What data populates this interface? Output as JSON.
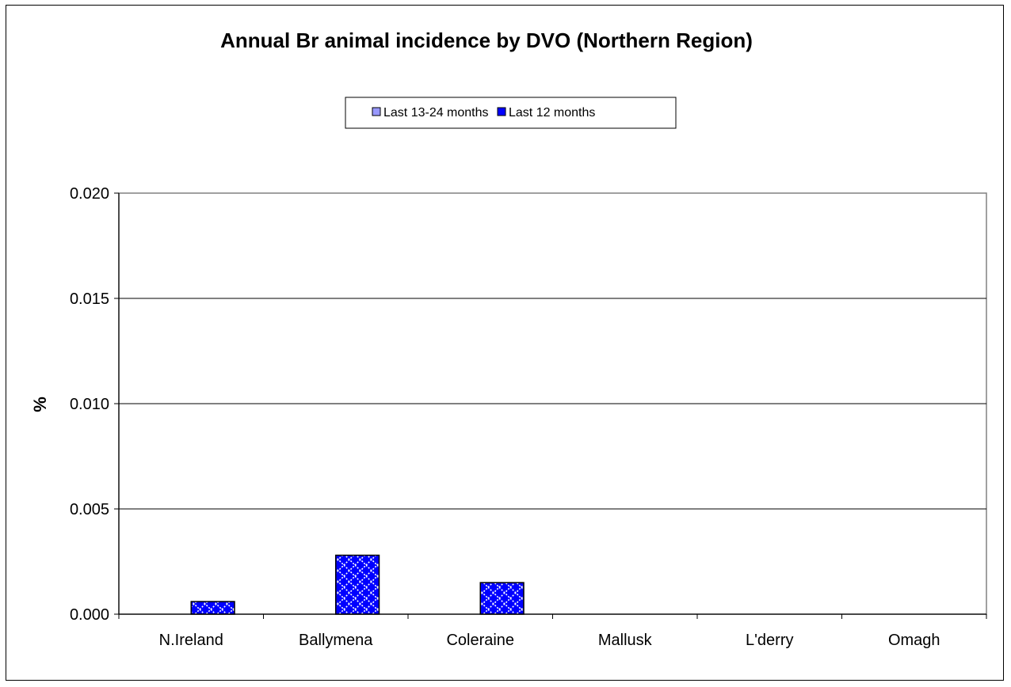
{
  "chart_data": {
    "type": "bar",
    "title": "Annual Br animal incidence by DVO (Northern Region)",
    "xlabel": "",
    "ylabel": "%",
    "categories": [
      "N.Ireland",
      "Ballymena",
      "Coleraine",
      "Mallusk",
      "L'derry",
      "Omagh"
    ],
    "series": [
      {
        "name": "Last 13-24 months",
        "values": [
          0,
          0,
          0,
          0,
          0,
          0
        ],
        "color": "#9999ff"
      },
      {
        "name": "Last 12 months",
        "values": [
          0.0006,
          0.0028,
          0.0015,
          0,
          0,
          0
        ],
        "color": "#0000ff"
      }
    ],
    "ylim": [
      0,
      0.02
    ],
    "yticks": [
      "0.000",
      "0.005",
      "0.010",
      "0.015",
      "0.020"
    ],
    "grid": true,
    "legend_position": "top-center"
  }
}
